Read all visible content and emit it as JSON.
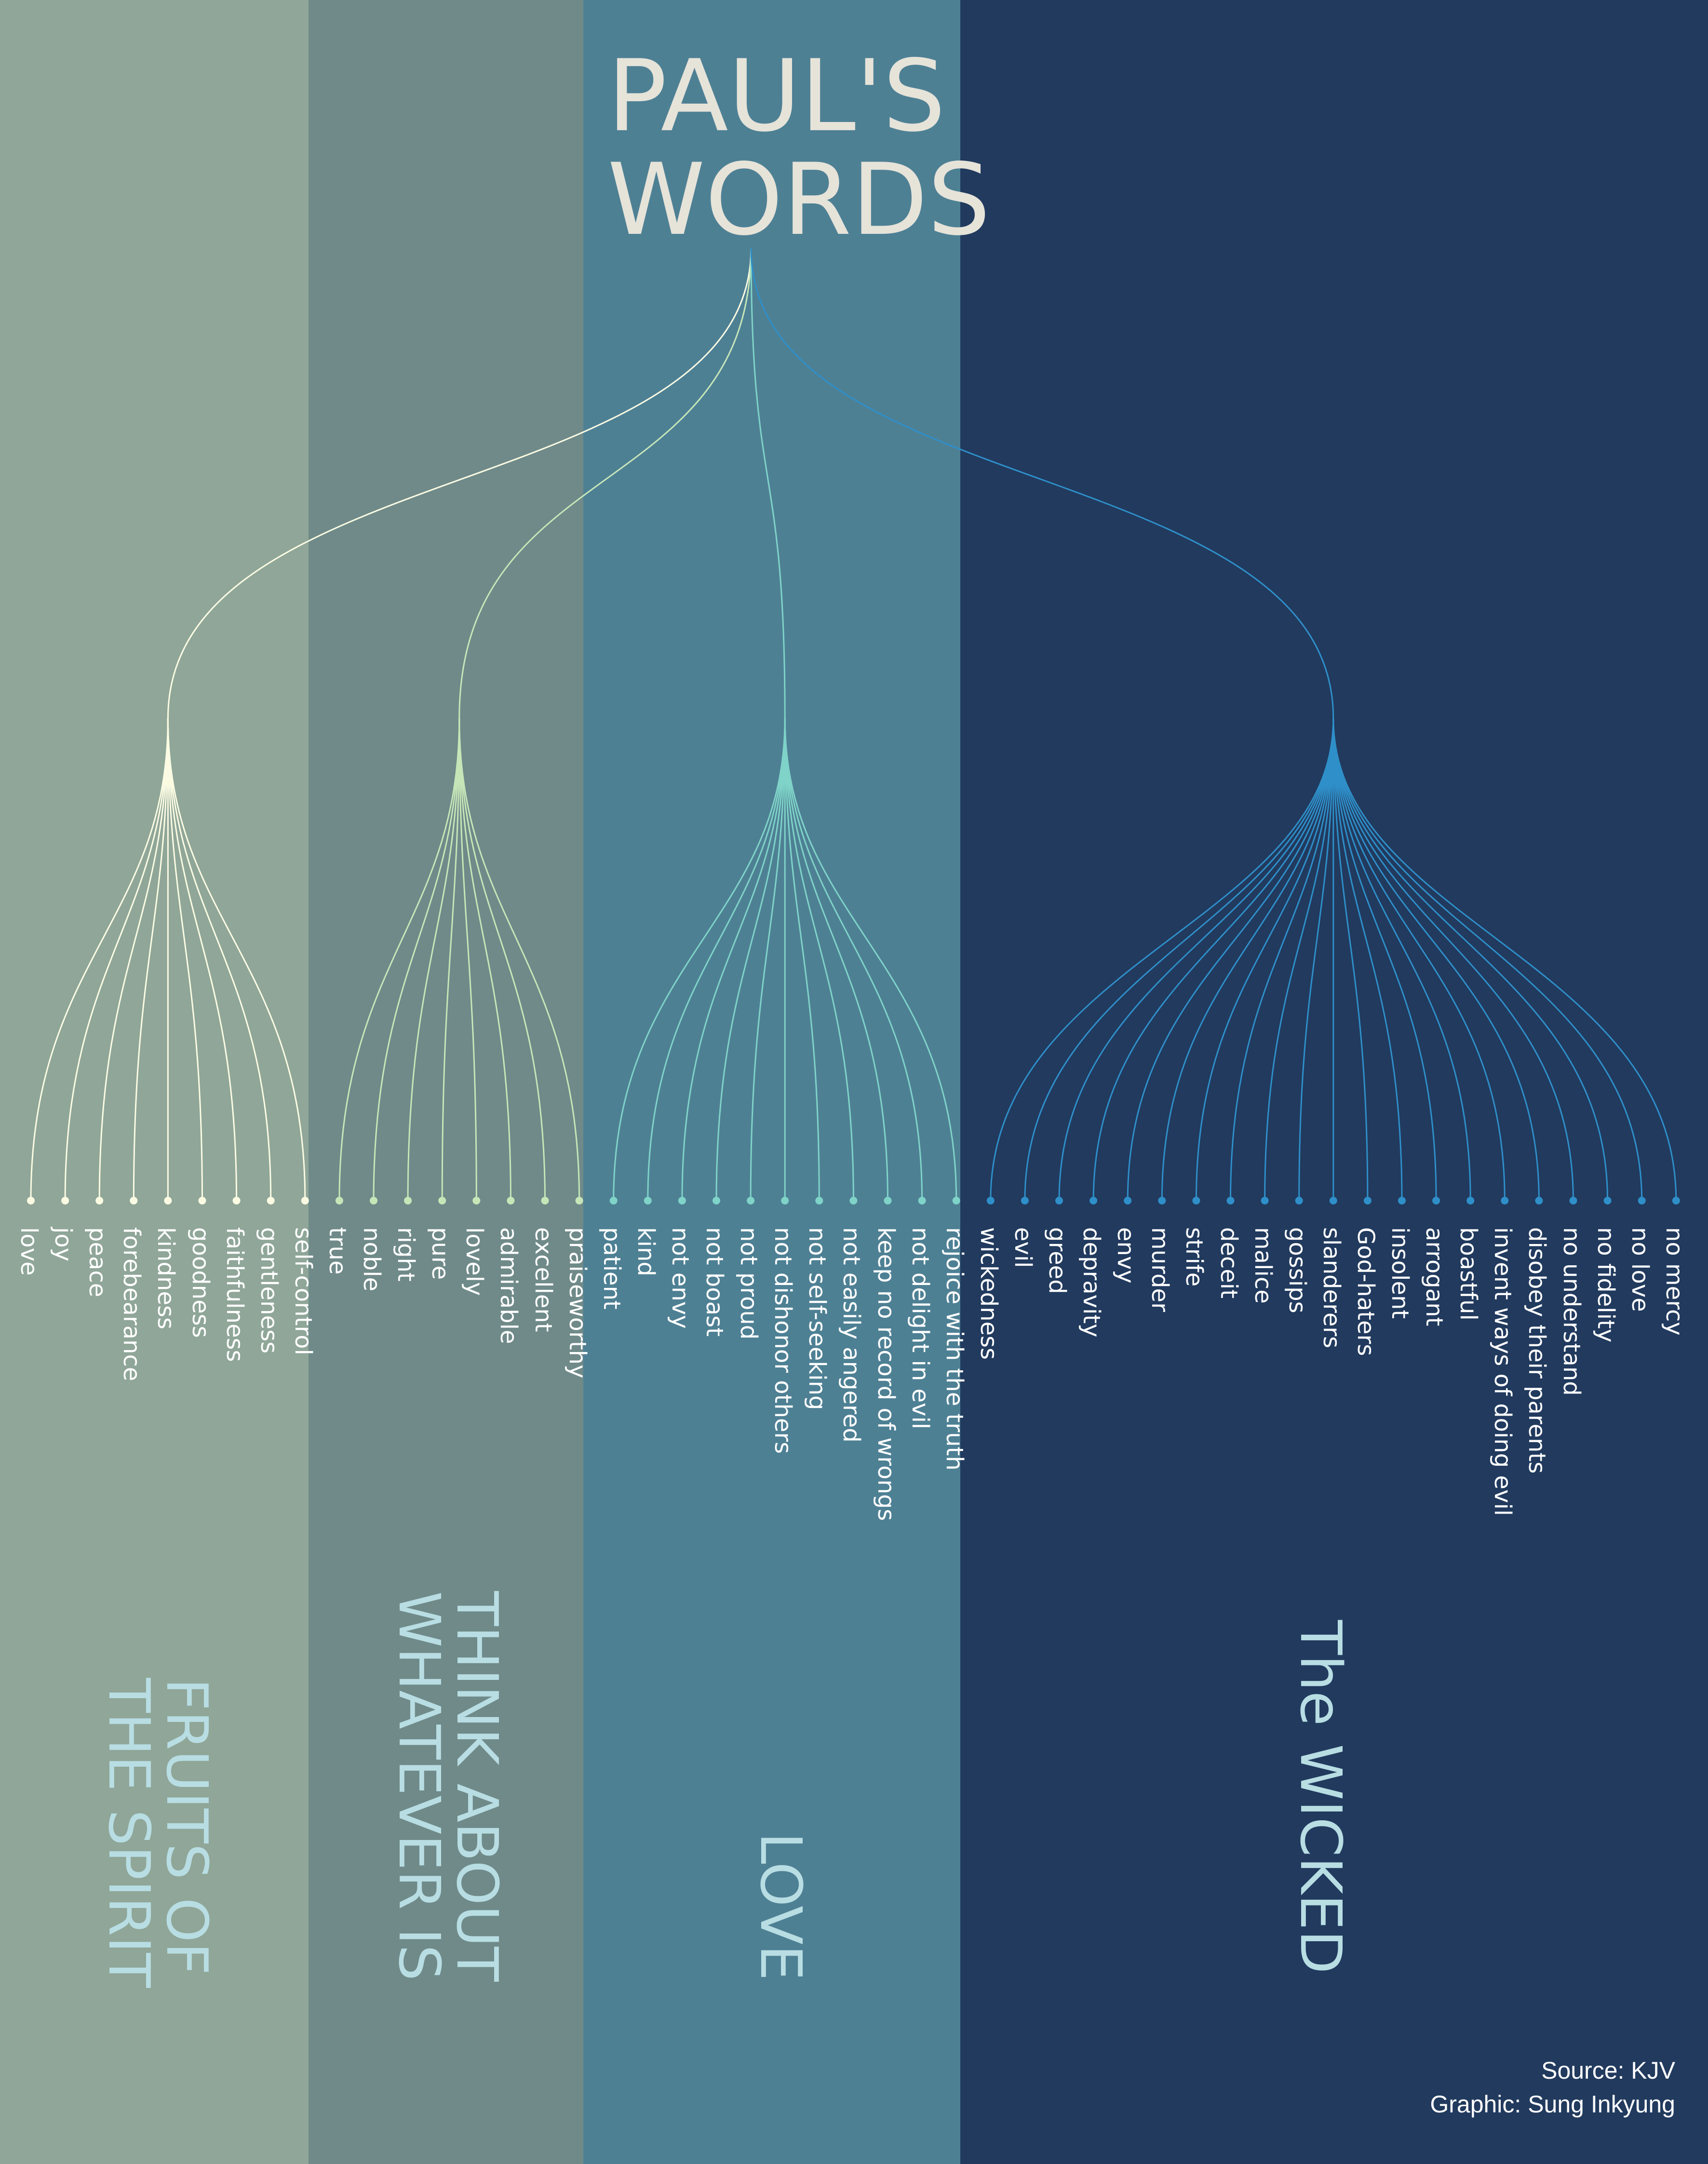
{
  "title": {
    "line1": "PAUL'S",
    "line2": "WORDS",
    "color": "#e6e3d9"
  },
  "groups": [
    {
      "name": "FRUITS OF\nTHE SPIRIT",
      "panel_color": "#8fa698",
      "line_color": "#fbfbe3",
      "title_color": "#b8dde3",
      "items": [
        "love",
        "joy",
        "peace",
        "forebearance",
        "kindness",
        "goodness",
        "faithfulness",
        "gentleness",
        "self-control"
      ]
    },
    {
      "name": "THINK ABOUT\nWHATEVER IS",
      "panel_color": "#6f8a89",
      "line_color": "#c6e6b8",
      "title_color": "#b8dde3",
      "items": [
        "true",
        "noble",
        "right",
        "pure",
        "lovely",
        "admirable",
        "excellent",
        "praiseworthy"
      ]
    },
    {
      "name": "LOVE",
      "panel_color": "#4e8094",
      "line_color": "#7fd3c8",
      "title_color": "#b8dde3",
      "items": [
        "patient",
        "kind",
        "not envy",
        "not boast",
        "not proud",
        "not dishonor others",
        "not self-seeking",
        "not easily angered",
        "keep no record of wrongs",
        "not delight in evil",
        "rejoice with the truth"
      ]
    },
    {
      "name": "The WICKED",
      "panel_color": "#213a5e",
      "line_color": "#2f8fc9",
      "title_color": "#b8dde3",
      "items": [
        "wickedness",
        "evil",
        "greed",
        "depravity",
        "envy",
        "murder",
        "strife",
        "deceit",
        "malice",
        "gossips",
        "slanderers",
        "God-haters",
        "insolent",
        "arrogant",
        "boastful",
        "invent ways of doing evil",
        "disobey their parents",
        "no understand",
        "no fidelity",
        "no love",
        "no mercy"
      ]
    }
  ],
  "label_color": "#ffffff",
  "credits": {
    "source": "Source: KJV",
    "graphic": "Graphic: Sung Inkyung",
    "color": "#ffffff"
  }
}
